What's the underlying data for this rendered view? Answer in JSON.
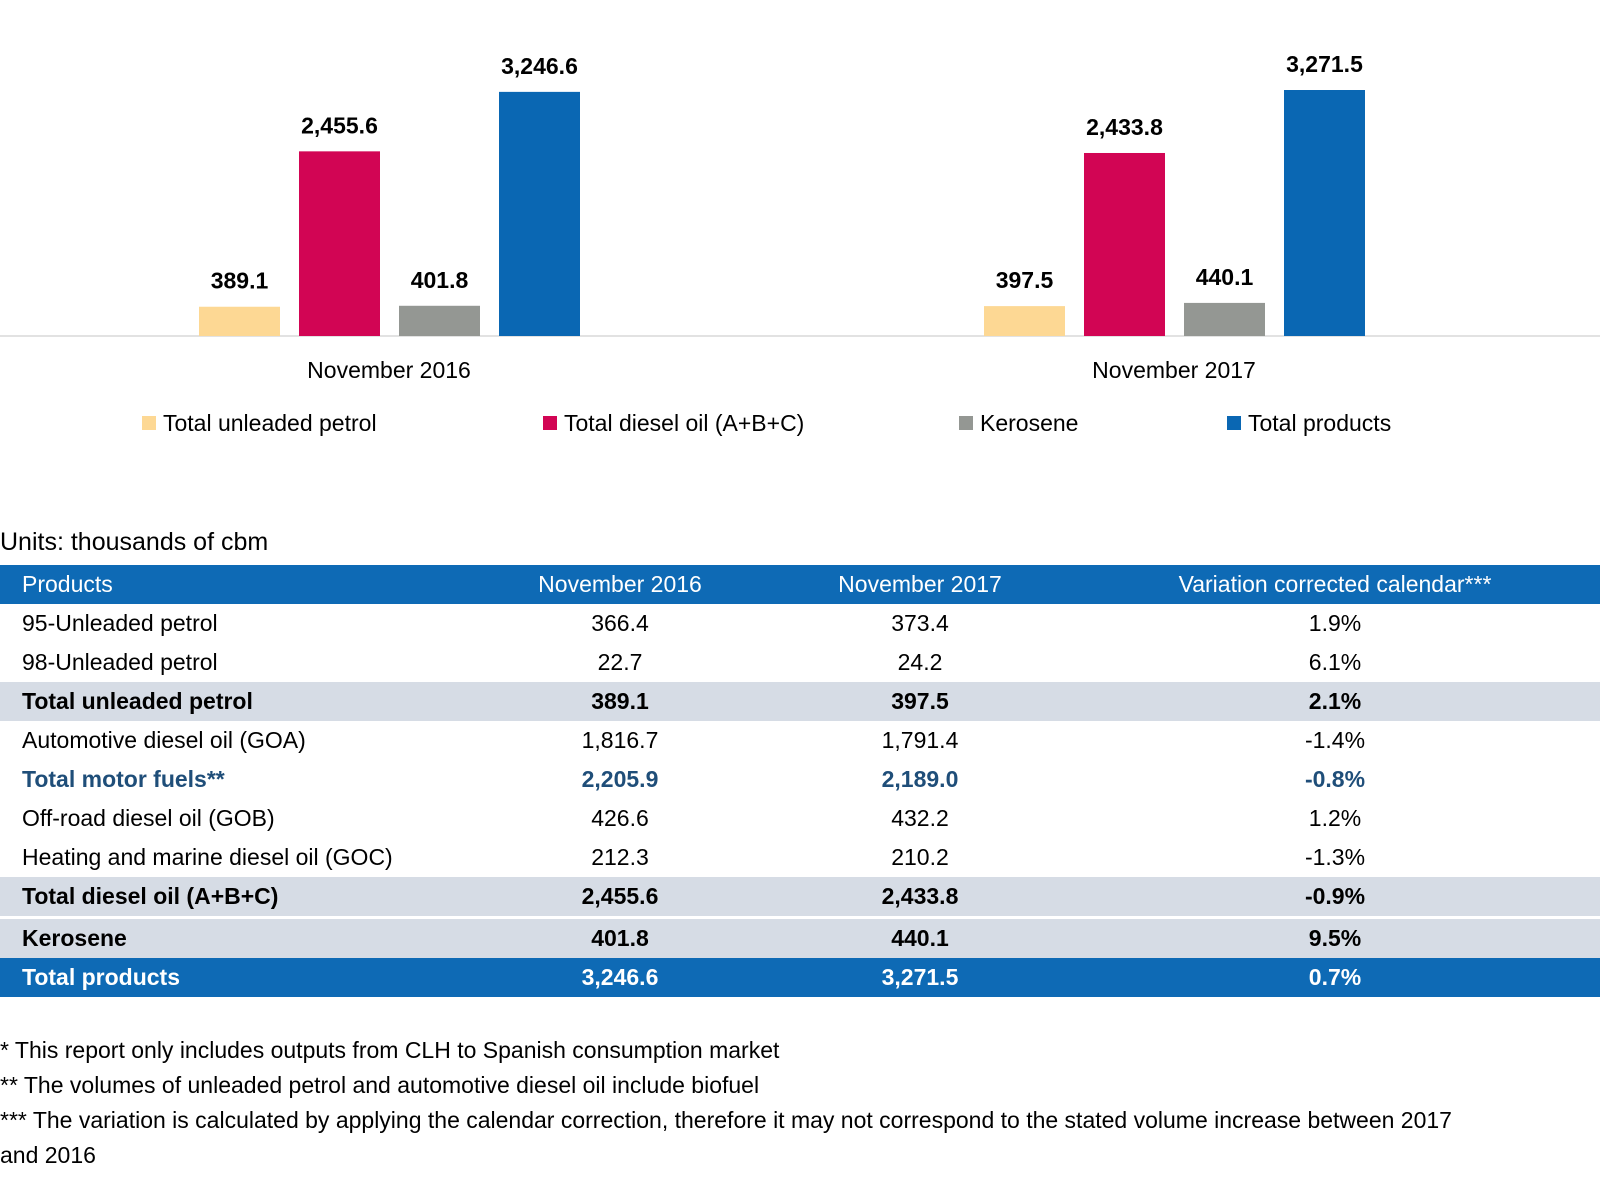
{
  "chart_data": {
    "type": "bar",
    "categories": [
      "November 2016",
      "November 2017"
    ],
    "series": [
      {
        "name": "Total unleaded petrol",
        "color": "#fdd894",
        "values": [
          389.1,
          397.5
        ],
        "labels": [
          "389.1",
          "397.5"
        ]
      },
      {
        "name": "Total diesel oil (A+B+C)",
        "color": "#d20554",
        "values": [
          2455.6,
          2433.8
        ],
        "labels": [
          "2,455.6",
          "2,433.8"
        ]
      },
      {
        "name": "Kerosene",
        "color": "#949793",
        "values": [
          401.8,
          440.1
        ],
        "labels": [
          "401.8",
          "440.1"
        ]
      },
      {
        "name": "Total products",
        "color": "#0a67b3",
        "values": [
          3246.6,
          3271.5
        ],
        "labels": [
          "3,246.6",
          "3,271.5"
        ]
      }
    ],
    "legend_position": "bottom",
    "grid": false
  },
  "units_note": "Units: thousands of cbm",
  "table": {
    "headers": [
      "Products",
      "November 2016",
      "November 2017",
      "Variation corrected calendar***"
    ],
    "rows": [
      {
        "cells": [
          "95-Unleaded petrol",
          "366.4",
          "373.4",
          "1.9%"
        ],
        "style": "plain"
      },
      {
        "cells": [
          "98-Unleaded petrol",
          "22.7",
          "24.2",
          "6.1%"
        ],
        "style": "plain"
      },
      {
        "cells": [
          "Total unleaded petrol",
          "389.1",
          "397.5",
          "2.1%"
        ],
        "style": "sub"
      },
      {
        "cells": [
          "Automotive diesel oil (GOA)",
          "1,816.7",
          "1,791.4",
          "-1.4%"
        ],
        "style": "plain"
      },
      {
        "cells": [
          "Total motor fuels**",
          "2,205.9",
          "2,189.0",
          "-0.8%"
        ],
        "style": "motor"
      },
      {
        "cells": [
          "Off-road diesel oil (GOB)",
          "426.6",
          "432.2",
          "1.2%"
        ],
        "style": "plain"
      },
      {
        "cells": [
          "Heating and marine diesel oil (GOC)",
          "212.3",
          "210.2",
          "-1.3%"
        ],
        "style": "plain"
      },
      {
        "cells": [
          "Total diesel oil (A+B+C)",
          "2,455.6",
          "2,433.8",
          "-0.9%"
        ],
        "style": "sub"
      },
      {
        "cells": [
          "Kerosene",
          "401.8",
          "440.1",
          "9.5%"
        ],
        "style": "sub sep"
      },
      {
        "cells": [
          "Total products",
          "3,246.6",
          "3,271.5",
          "0.7%"
        ],
        "style": "total"
      }
    ]
  },
  "footnotes": [
    "* This report only includes outputs from CLH to Spanish consumption market",
    "** The volumes of unleaded petrol and automotive diesel oil include biofuel",
    "*** The variation is calculated by applying the calendar correction, therefore it may not correspond to the stated volume increase between 2017",
    "and 2016"
  ]
}
